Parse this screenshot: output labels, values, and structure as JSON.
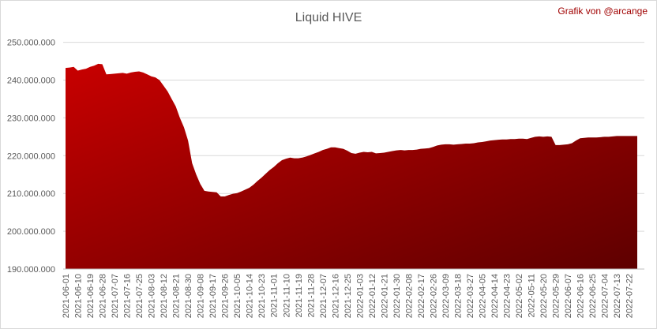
{
  "chart_data": {
    "type": "area",
    "title": "Liquid HIVE",
    "annotation": "Grafik von @arcange",
    "gradient": [
      "#c80000",
      "#5e0000"
    ],
    "grid": true,
    "ylim": [
      190000000,
      252000000
    ],
    "yticks": [
      {
        "value": 190000000,
        "label": "190.000.000"
      },
      {
        "value": 200000000,
        "label": "200.000.000"
      },
      {
        "value": 210000000,
        "label": "210.000.000"
      },
      {
        "value": 220000000,
        "label": "220.000.000"
      },
      {
        "value": 230000000,
        "label": "230.000.000"
      },
      {
        "value": 240000000,
        "label": "240.000.000"
      },
      {
        "value": 250000000,
        "label": "250.000.000"
      }
    ],
    "categories": [
      "2021-06-01",
      null,
      null,
      "2021-06-10",
      null,
      null,
      "2021-06-19",
      null,
      null,
      "2021-06-28",
      null,
      null,
      "2021-07-07",
      null,
      null,
      "2021-07-16",
      null,
      null,
      "2021-07-25",
      null,
      null,
      "2021-08-03",
      null,
      null,
      "2021-08-12",
      null,
      null,
      "2021-08-21",
      null,
      null,
      "2021-08-30",
      null,
      null,
      "2021-09-08",
      null,
      null,
      "2021-09-17",
      null,
      null,
      "2021-09-26",
      null,
      null,
      "2021-10-05",
      null,
      null,
      "2021-10-14",
      null,
      null,
      "2021-10-23",
      null,
      null,
      "2021-11-01",
      null,
      null,
      "2021-11-10",
      null,
      null,
      "2021-11-19",
      null,
      null,
      "2021-11-28",
      null,
      null,
      "2021-12-07",
      null,
      null,
      "2021-12-16",
      null,
      null,
      "2021-12-25",
      null,
      null,
      "2022-01-03",
      null,
      null,
      "2022-01-12",
      null,
      null,
      "2022-01-21",
      null,
      null,
      "2022-01-30",
      null,
      null,
      "2022-02-08",
      null,
      null,
      "2022-02-17",
      null,
      null,
      "2022-02-26",
      null,
      null,
      "2022-03-09",
      null,
      null,
      "2022-03-18",
      null,
      null,
      "2022-03-27",
      null,
      null,
      "2022-04-05",
      null,
      null,
      "2022-04-14",
      null,
      null,
      "2022-04-23",
      null,
      null,
      "2022-05-02",
      null,
      null,
      "2022-05-11",
      null,
      null,
      "2022-05-20",
      null,
      null,
      "2022-05-29",
      null,
      null,
      "2022-06-07",
      null,
      null,
      "2022-06-16",
      null,
      null,
      "2022-06-25",
      null,
      null,
      "2022-07-04",
      null,
      null,
      "2022-07-13",
      null,
      null,
      "2022-07-22",
      null,
      null
    ],
    "values": [
      243200000,
      243300000,
      243500000,
      242500000,
      242800000,
      243000000,
      243500000,
      243800000,
      244300000,
      244200000,
      241500000,
      241600000,
      241700000,
      241800000,
      241900000,
      241700000,
      242000000,
      242200000,
      242300000,
      242000000,
      241500000,
      241000000,
      240700000,
      240000000,
      238500000,
      237000000,
      235000000,
      233000000,
      230000000,
      227500000,
      224000000,
      218000000,
      215000000,
      212500000,
      210700000,
      210500000,
      210400000,
      210300000,
      209200000,
      209200000,
      209600000,
      209900000,
      210100000,
      210500000,
      211000000,
      211500000,
      212300000,
      213300000,
      214200000,
      215200000,
      216200000,
      217000000,
      218000000,
      218800000,
      219200000,
      219500000,
      219300000,
      219300000,
      219500000,
      219800000,
      220200000,
      220600000,
      221000000,
      221500000,
      221800000,
      222200000,
      222200000,
      222000000,
      221800000,
      221300000,
      220700000,
      220500000,
      220800000,
      221000000,
      220900000,
      221000000,
      220600000,
      220700000,
      220800000,
      221000000,
      221200000,
      221400000,
      221500000,
      221400000,
      221500000,
      221500000,
      221600000,
      221800000,
      221900000,
      222000000,
      222300000,
      222700000,
      222900000,
      223000000,
      223000000,
      222900000,
      223000000,
      223100000,
      223200000,
      223200000,
      223300000,
      223500000,
      223600000,
      223800000,
      224000000,
      224100000,
      224200000,
      224300000,
      224300000,
      224400000,
      224400000,
      224500000,
      224500000,
      224400000,
      224700000,
      225000000,
      225100000,
      225000000,
      225100000,
      225000000,
      222800000,
      222800000,
      222900000,
      223000000,
      223300000,
      224000000,
      224600000,
      224700000,
      224800000,
      224800000,
      224800000,
      224900000,
      225000000,
      225000000,
      225100000,
      225200000,
      225200000,
      225200000,
      225200000,
      225200000,
      225200000
    ]
  }
}
